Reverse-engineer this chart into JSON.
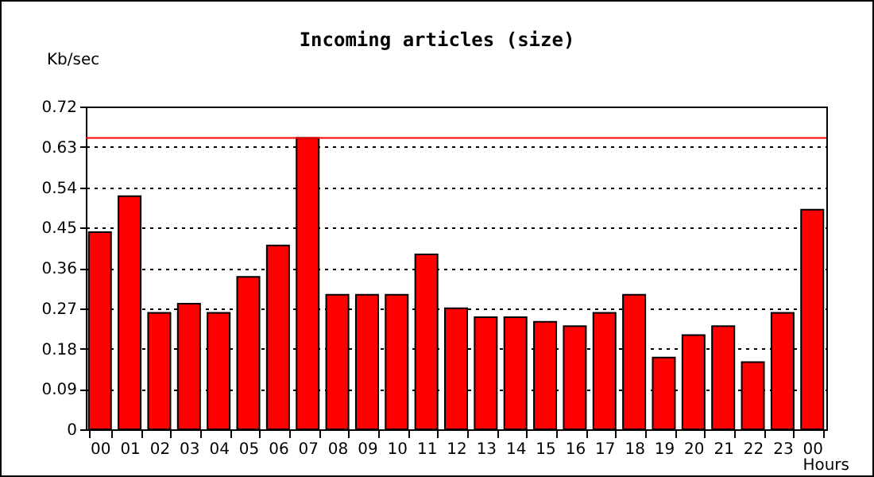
{
  "chart_data": {
    "type": "bar",
    "title": "Incoming articles (size)",
    "xlabel": "Hours",
    "ylabel": "Kb/sec",
    "categories": [
      "00",
      "01",
      "02",
      "03",
      "04",
      "05",
      "06",
      "07",
      "08",
      "09",
      "10",
      "11",
      "12",
      "13",
      "14",
      "15",
      "16",
      "17",
      "18",
      "19",
      "20",
      "21",
      "22",
      "23",
      "00"
    ],
    "values": [
      0.44,
      0.52,
      0.26,
      0.28,
      0.26,
      0.34,
      0.41,
      0.65,
      0.3,
      0.3,
      0.3,
      0.39,
      0.27,
      0.25,
      0.25,
      0.24,
      0.23,
      0.26,
      0.3,
      0.16,
      0.21,
      0.23,
      0.15,
      0.26,
      0.49
    ],
    "color": "#ff0000",
    "ylim": [
      0,
      0.72
    ],
    "yticks": [
      0,
      0.09,
      0.18,
      0.27,
      0.36,
      0.45,
      0.54,
      0.63,
      0.72
    ],
    "grid": "y",
    "ref_lines": [
      {
        "axis": "y",
        "value": 0.65,
        "color": "#ff0000"
      }
    ]
  }
}
